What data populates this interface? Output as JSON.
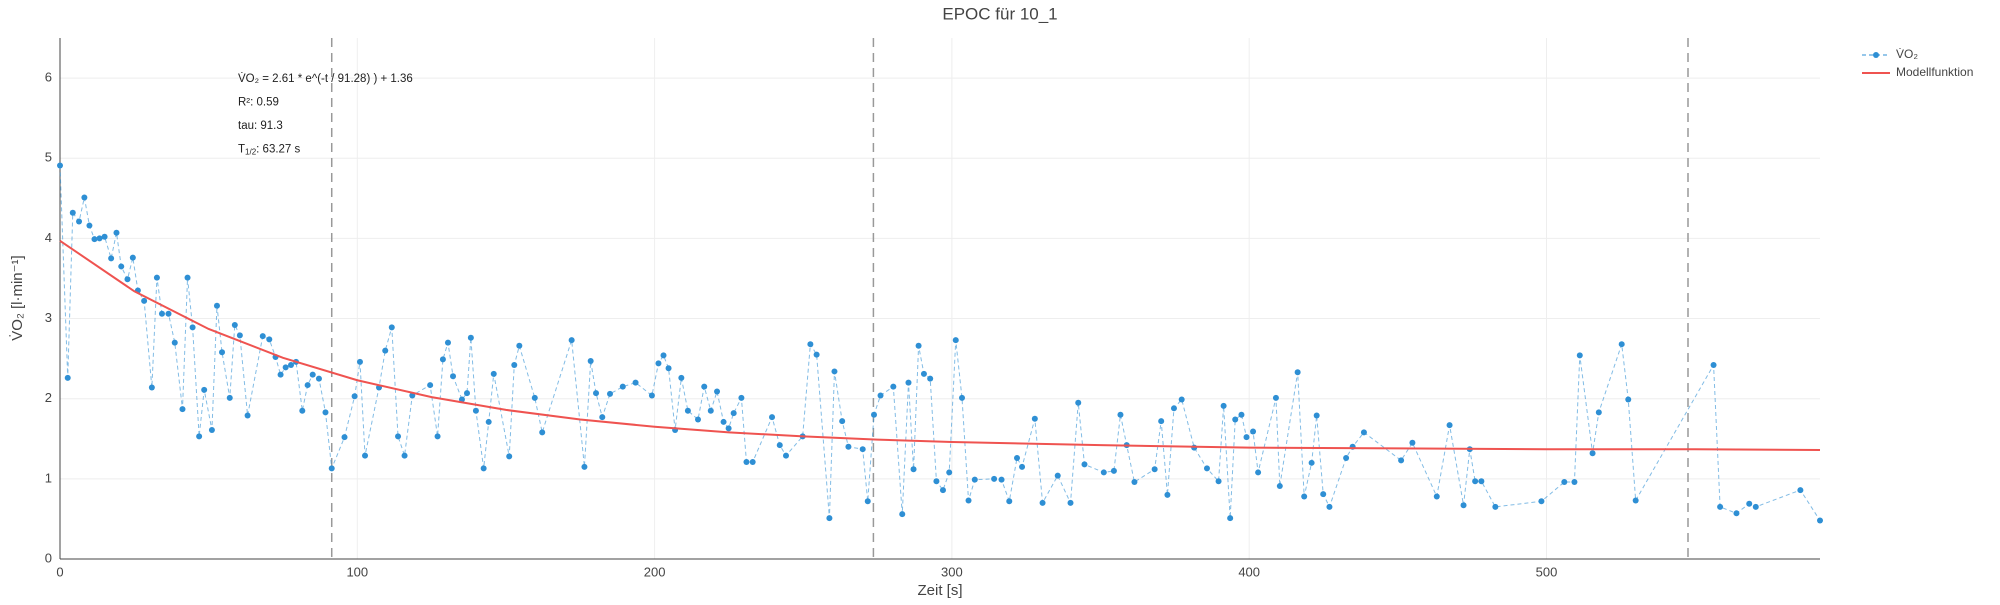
{
  "chart_data": {
    "type": "line",
    "title": "EPOC für 10_1",
    "x_label": "Zeit [s]",
    "y_label": "V̇O₂ [l·min⁻¹]",
    "xlim": [
      0,
      592
    ],
    "ylim": [
      0,
      6.5
    ],
    "xticks": [
      0,
      100,
      200,
      300,
      400,
      500
    ],
    "yticks": [
      0,
      1,
      2,
      3,
      4,
      5,
      6
    ],
    "grid": true,
    "legend": "top-right",
    "vlines": [
      91.4,
      273.6,
      547.6
    ],
    "annotations": [
      {
        "text": "V̇O₂ = 2.61 * e^(-t / 91.28) ) + 1.36"
      },
      {
        "text": "R²: 0.59"
      },
      {
        "text": "tau: 91.3"
      },
      {
        "text": "T",
        "sub": "1/2",
        "rest": ": 63.27 s"
      }
    ],
    "series": [
      {
        "name": "V̇O₂",
        "color": "#2e8fd4",
        "style": "dashed-markers",
        "x": [
          0,
          2.6,
          4.3,
          6.4,
          8.2,
          9.9,
          11.6,
          13.3,
          15,
          17.2,
          19,
          20.6,
          22.7,
          24.5,
          26.2,
          28.3,
          30.9,
          32.6,
          34.3,
          36.5,
          38.6,
          41.2,
          42.9,
          44.6,
          46.8,
          48.5,
          51.1,
          52.8,
          54.5,
          57.1,
          58.8,
          60.5,
          63.1,
          68.2,
          70.4,
          72.5,
          74.2,
          75.9,
          77.7,
          79.4,
          81.5,
          83.3,
          85,
          87.1,
          89.3,
          91.4,
          95.7,
          99.1,
          100.9,
          102.6,
          107.3,
          109.4,
          111.6,
          113.7,
          115.9,
          118.5,
          124.5,
          127,
          128.8,
          130.5,
          132.2,
          135.2,
          136.9,
          138.2,
          139.9,
          142.5,
          144.2,
          145.9,
          151.1,
          152.8,
          154.5,
          159.7,
          162.2,
          172.1,
          176.4,
          178.5,
          180.3,
          182.4,
          185,
          189.3,
          193.6,
          199.1,
          201.3,
          203,
          204.7,
          206.9,
          209,
          211.2,
          214.6,
          216.7,
          218.9,
          221,
          223.2,
          224.9,
          226.6,
          229.2,
          230.9,
          233,
          239.5,
          242.1,
          244.2,
          249.8,
          252.4,
          254.5,
          258.8,
          260.5,
          263.1,
          265.2,
          270,
          271.7,
          273.8,
          276,
          280.3,
          283.3,
          285.4,
          287.1,
          288.8,
          290.6,
          292.7,
          294.8,
          297,
          299.1,
          301.3,
          303.4,
          305.6,
          307.7,
          314.2,
          316.7,
          319.3,
          321.9,
          323.6,
          327.9,
          330.5,
          335.6,
          339.9,
          342.5,
          344.6,
          351.1,
          354.5,
          356.7,
          358.8,
          361.4,
          368.2,
          370.4,
          372.5,
          374.7,
          377.3,
          381.5,
          385.8,
          389.7,
          391.4,
          393.6,
          395.3,
          397.4,
          399.1,
          401.3,
          403,
          409,
          410.3,
          416.3,
          418.5,
          421,
          422.7,
          424.9,
          427,
          432.6,
          434.8,
          438.6,
          451.1,
          454.9,
          463.1,
          467.4,
          472.1,
          474.2,
          476,
          478.1,
          482.8,
          498.3,
          506,
          509.4,
          511.2,
          515.5,
          517.6,
          525.3,
          527.5,
          530,
          556.2,
          558.4,
          563.9,
          568.2,
          570.4,
          585.4,
          592
        ],
        "values": [
          4.91,
          2.26,
          4.32,
          4.21,
          4.51,
          4.16,
          3.99,
          4.0,
          4.02,
          3.75,
          4.07,
          3.65,
          3.49,
          3.76,
          3.35,
          3.22,
          2.14,
          3.51,
          3.06,
          3.06,
          2.7,
          1.87,
          3.51,
          2.89,
          1.53,
          2.11,
          1.61,
          3.16,
          2.58,
          2.01,
          2.92,
          2.79,
          1.79,
          2.78,
          2.74,
          2.52,
          2.3,
          2.39,
          2.42,
          2.46,
          1.85,
          2.17,
          2.3,
          2.25,
          1.83,
          1.13,
          1.52,
          2.03,
          2.46,
          1.29,
          2.14,
          2.6,
          2.89,
          1.53,
          1.29,
          2.04,
          2.17,
          1.53,
          2.49,
          2.7,
          2.28,
          1.99,
          2.07,
          2.76,
          1.85,
          1.13,
          1.71,
          2.31,
          1.28,
          2.42,
          2.66,
          2.01,
          1.58,
          2.73,
          1.15,
          2.47,
          2.07,
          1.77,
          2.06,
          2.15,
          2.2,
          2.04,
          2.44,
          2.54,
          2.38,
          1.61,
          2.26,
          1.85,
          1.74,
          2.15,
          1.85,
          2.09,
          1.71,
          1.63,
          1.82,
          2.01,
          1.21,
          1.21,
          1.77,
          1.42,
          1.29,
          1.53,
          2.68,
          2.55,
          0.51,
          2.34,
          1.72,
          1.4,
          1.37,
          0.72,
          1.8,
          2.04,
          2.15,
          0.56,
          2.2,
          1.12,
          2.66,
          2.31,
          2.25,
          0.97,
          0.86,
          1.08,
          2.73,
          2.01,
          0.73,
          0.99,
          1.0,
          0.99,
          0.72,
          1.26,
          1.15,
          1.75,
          0.7,
          1.04,
          0.7,
          1.95,
          1.18,
          1.08,
          1.1,
          1.8,
          1.42,
          0.96,
          1.12,
          1.72,
          0.8,
          1.88,
          1.99,
          1.39,
          1.13,
          0.97,
          1.91,
          0.51,
          1.74,
          1.8,
          1.52,
          1.59,
          1.08,
          2.01,
          0.91,
          2.33,
          0.78,
          1.2,
          1.79,
          0.81,
          0.65,
          1.26,
          1.4,
          1.58,
          1.23,
          1.45,
          0.78,
          1.67,
          0.67,
          1.37,
          0.97,
          0.97,
          0.65,
          0.72,
          0.96,
          0.96,
          2.54,
          1.32,
          1.83,
          2.68,
          1.99,
          0.73,
          2.42,
          0.65,
          0.57,
          0.69,
          0.65,
          0.86,
          0.48
        ]
      },
      {
        "name": "Modellfunktion",
        "color": "#ef5350",
        "style": "solid",
        "x": [
          0,
          25,
          50,
          75,
          100,
          125,
          150,
          175,
          200,
          225,
          250,
          275,
          300,
          350,
          400,
          450,
          500,
          550,
          592
        ],
        "values": [
          3.97,
          3.34,
          2.87,
          2.51,
          2.23,
          2.02,
          1.86,
          1.74,
          1.65,
          1.58,
          1.53,
          1.49,
          1.46,
          1.42,
          1.39,
          1.38,
          1.37,
          1.37,
          1.36
        ]
      }
    ]
  }
}
